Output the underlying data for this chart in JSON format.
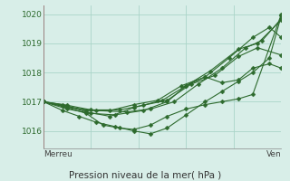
{
  "title": "Pression niveau de la mer( hPa )",
  "xlabel_left": "Merreu",
  "xlabel_right": "Ven",
  "ylim": [
    1015.4,
    1020.3
  ],
  "yticks": [
    1016,
    1017,
    1018,
    1019,
    1020
  ],
  "bg_color": "#d8eee8",
  "grid_color": "#aad4c8",
  "line_color": "#2d6a2d",
  "red_line_color": "#cc4444",
  "series": [
    [
      0.0,
      1017.0,
      0.08,
      1016.85,
      0.18,
      1016.6,
      0.25,
      1016.2,
      0.32,
      1016.1,
      0.38,
      1016.05,
      0.45,
      1016.2,
      0.52,
      1016.5,
      0.6,
      1016.75,
      0.68,
      1016.9,
      0.75,
      1017.0,
      0.82,
      1017.1,
      0.88,
      1017.25,
      1.0,
      1020.0
    ],
    [
      0.0,
      1017.0,
      0.08,
      1016.9,
      0.18,
      1016.65,
      0.28,
      1016.5,
      0.38,
      1016.8,
      0.5,
      1017.05,
      0.6,
      1017.55,
      0.7,
      1018.05,
      0.82,
      1018.8,
      0.9,
      1019.0,
      1.0,
      1019.8
    ],
    [
      0.0,
      1017.0,
      0.1,
      1016.8,
      0.22,
      1016.7,
      0.35,
      1016.65,
      0.45,
      1016.75,
      0.55,
      1017.0,
      0.65,
      1017.6,
      0.75,
      1018.15,
      0.85,
      1018.85,
      0.92,
      1019.1,
      1.0,
      1019.85
    ],
    [
      0.0,
      1017.0,
      0.1,
      1016.75,
      0.2,
      1016.6,
      0.3,
      1016.55,
      0.42,
      1016.7,
      0.52,
      1017.0,
      0.6,
      1017.55,
      0.68,
      1017.85,
      0.75,
      1017.65,
      0.82,
      1017.75,
      0.88,
      1018.15,
      0.95,
      1018.3,
      1.0,
      1018.15
    ],
    [
      0.0,
      1017.0,
      0.08,
      1016.7,
      0.15,
      1016.5,
      0.22,
      1016.3,
      0.3,
      1016.15,
      0.38,
      1016.0,
      0.45,
      1015.9,
      0.52,
      1016.1,
      0.6,
      1016.55,
      0.68,
      1017.0,
      0.75,
      1017.35,
      0.82,
      1017.7,
      0.88,
      1018.0,
      0.95,
      1018.5,
      1.0,
      1019.95
    ],
    [
      0.0,
      1017.0,
      0.1,
      1016.85,
      0.18,
      1016.7,
      0.28,
      1016.7,
      0.38,
      1016.9,
      0.48,
      1017.05,
      0.58,
      1017.55,
      0.68,
      1017.85,
      0.78,
      1018.5,
      0.88,
      1019.2,
      0.95,
      1019.55,
      1.0,
      1019.2
    ],
    [
      0.0,
      1017.0,
      0.1,
      1016.88,
      0.2,
      1016.72,
      0.32,
      1016.72,
      0.42,
      1016.88,
      0.52,
      1017.05,
      0.62,
      1017.6,
      0.72,
      1017.9,
      0.82,
      1018.55,
      0.9,
      1018.85,
      1.0,
      1018.6
    ]
  ]
}
